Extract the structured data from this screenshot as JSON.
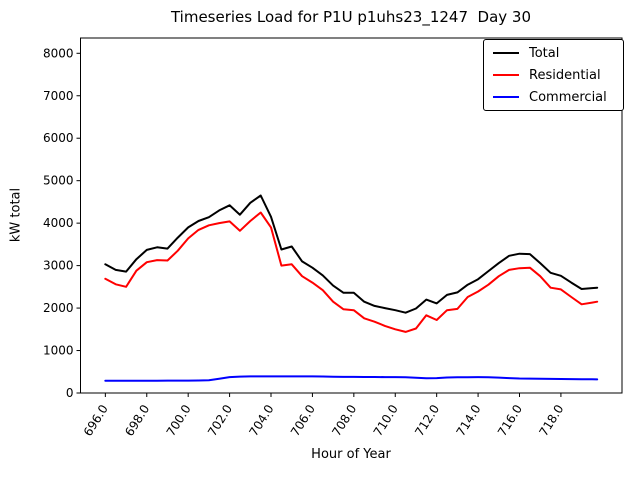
{
  "chart_data": {
    "type": "line",
    "title": "Timeseries Load for P1U p1uhs23_1247  Day 30",
    "xlabel": "Hour of Year",
    "ylabel": "kW total",
    "xlim": [
      694.8,
      720.95
    ],
    "ylim": [
      0,
      8360
    ],
    "grid": false,
    "legend_position": "upper right",
    "y_ticks": [
      0,
      1000,
      2000,
      3000,
      4000,
      5000,
      6000,
      7000,
      8000
    ],
    "x_ticks": [
      696,
      698,
      700,
      702,
      704,
      706,
      708,
      710,
      712,
      714,
      716,
      718
    ],
    "x_tick_labels": [
      "696.0",
      "698.0",
      "700.0",
      "702.0",
      "704.0",
      "706.0",
      "708.0",
      "710.0",
      "712.0",
      "714.0",
      "716.0",
      "718.0"
    ],
    "x": [
      696.0,
      696.5,
      697.0,
      697.5,
      698.0,
      698.5,
      699.0,
      699.5,
      700.0,
      700.5,
      701.0,
      701.5,
      702.0,
      702.5,
      703.0,
      703.5,
      704.0,
      704.5,
      705.0,
      705.5,
      706.0,
      706.5,
      707.0,
      707.5,
      708.0,
      708.5,
      709.0,
      709.5,
      710.0,
      710.5,
      711.0,
      711.5,
      712.0,
      712.5,
      713.0,
      713.5,
      714.0,
      714.5,
      715.0,
      715.5,
      716.0,
      716.5,
      717.0,
      717.5,
      718.0,
      718.5,
      719.0,
      719.5,
      719.75
    ],
    "series": [
      {
        "name": "Total",
        "color": "#000000",
        "values": [
          3030,
          2900,
          2860,
          3150,
          3370,
          3430,
          3400,
          3660,
          3900,
          4050,
          4140,
          4300,
          4420,
          4200,
          4480,
          4650,
          4150,
          3380,
          3450,
          3100,
          2950,
          2770,
          2530,
          2360,
          2360,
          2150,
          2050,
          2000,
          1950,
          1890,
          1990,
          2200,
          2110,
          2310,
          2370,
          2550,
          2680,
          2870,
          3060,
          3230,
          3280,
          3270,
          3060,
          2830,
          2760,
          2600,
          2450,
          2470,
          2480
        ]
      },
      {
        "name": "Residential",
        "color": "#ff0000",
        "values": [
          2690,
          2560,
          2500,
          2880,
          3080,
          3130,
          3120,
          3350,
          3640,
          3840,
          3950,
          4000,
          4040,
          3820,
          4050,
          4250,
          3900,
          3000,
          3030,
          2750,
          2600,
          2420,
          2150,
          1970,
          1950,
          1760,
          1680,
          1580,
          1500,
          1440,
          1520,
          1830,
          1720,
          1950,
          1980,
          2260,
          2390,
          2550,
          2750,
          2900,
          2940,
          2950,
          2750,
          2480,
          2440,
          2260,
          2090,
          2130,
          2150
        ]
      },
      {
        "name": "Commercial",
        "color": "#0000ff",
        "values": [
          290,
          288,
          287,
          288,
          289,
          290,
          291,
          292,
          292,
          294,
          298,
          335,
          375,
          386,
          390,
          392,
          391,
          390,
          392,
          392,
          390,
          388,
          384,
          380,
          378,
          377,
          376,
          375,
          374,
          370,
          358,
          345,
          352,
          366,
          372,
          371,
          375,
          371,
          362,
          350,
          342,
          338,
          335,
          332,
          330,
          328,
          325,
          322,
          320
        ]
      }
    ]
  }
}
